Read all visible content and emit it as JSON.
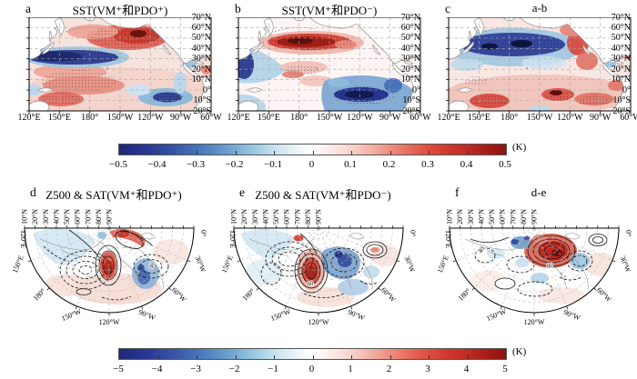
{
  "figure": {
    "background": "#ffffff"
  },
  "top_row": {
    "panels": [
      {
        "letter": "a",
        "title": "SST(VM⁺和PDO⁺)"
      },
      {
        "letter": "b",
        "title": "SST(VM⁺和PDO⁻)"
      },
      {
        "letter": "c",
        "title": "a-b"
      }
    ],
    "x_ticks": [
      "120°E",
      "150°E",
      "180°",
      "150°W",
      "120°W",
      "90°W",
      "60°W"
    ],
    "y_ticks": [
      "70°N",
      "60°N",
      "50°N",
      "40°N",
      "30°N",
      "20°N",
      "10°N",
      "0°",
      "10°S",
      "20°S"
    ]
  },
  "bottom_row": {
    "panels": [
      {
        "letter": "d",
        "title": "Z500 & SAT(VM⁺和PDO⁺)",
        "contour_labels": [
          "40"
        ]
      },
      {
        "letter": "e",
        "title": "Z500 & SAT(VM⁺和PDO⁻)",
        "contour_labels": [
          "80"
        ]
      },
      {
        "letter": "f",
        "title": "d-e",
        "contour_labels": [
          "40",
          "80"
        ]
      }
    ],
    "lat_ticks": [
      "10°N",
      "20°N",
      "30°N",
      "40°N",
      "50°N",
      "60°N",
      "70°N",
      "80°N",
      "90°N"
    ],
    "lon_ticks": [
      "120°E",
      "150°E",
      "180°",
      "150°W",
      "120°W",
      "90°W",
      "60°W",
      "30°W",
      "0°"
    ]
  },
  "colorbar_sst": {
    "unit": "(K)",
    "ticks": [
      "−0.5",
      "−0.4",
      "−0.3",
      "−0.2",
      "−0.1",
      "0",
      "0.1",
      "0.2",
      "0.3",
      "0.4",
      "0.5"
    ],
    "stops": [
      [
        0,
        "#1f2977"
      ],
      [
        7,
        "#293795"
      ],
      [
        14,
        "#3553a6"
      ],
      [
        21,
        "#4a77ba"
      ],
      [
        28,
        "#699fce"
      ],
      [
        34,
        "#94c4e0"
      ],
      [
        40,
        "#c4e1ef"
      ],
      [
        46,
        "#ecf5f8"
      ],
      [
        50,
        "#ffffff"
      ],
      [
        54,
        "#fdefec"
      ],
      [
        60,
        "#f8d3cc"
      ],
      [
        66,
        "#f2ab9e"
      ],
      [
        72,
        "#ea8070"
      ],
      [
        78,
        "#e1584a"
      ],
      [
        84,
        "#d33b30"
      ],
      [
        90,
        "#c02b23"
      ],
      [
        95,
        "#a81d17"
      ],
      [
        100,
        "#8c130f"
      ]
    ]
  },
  "colorbar_z": {
    "unit": "(K)",
    "ticks": [
      "−5",
      "−4",
      "−3",
      "−2",
      "−1",
      "0",
      "1",
      "2",
      "3",
      "4",
      "5"
    ],
    "stops": [
      [
        0,
        "#1f2977"
      ],
      [
        7,
        "#293795"
      ],
      [
        14,
        "#3553a6"
      ],
      [
        21,
        "#4a77ba"
      ],
      [
        28,
        "#699fce"
      ],
      [
        34,
        "#94c4e0"
      ],
      [
        40,
        "#c4e1ef"
      ],
      [
        46,
        "#ecf5f8"
      ],
      [
        50,
        "#ffffff"
      ],
      [
        54,
        "#fdefec"
      ],
      [
        60,
        "#f8d3cc"
      ],
      [
        66,
        "#f2ab9e"
      ],
      [
        72,
        "#ea8070"
      ],
      [
        78,
        "#e1584a"
      ],
      [
        84,
        "#d33b30"
      ],
      [
        90,
        "#c02b23"
      ],
      [
        95,
        "#a81d17"
      ],
      [
        100,
        "#8c130f"
      ]
    ]
  },
  "chart_data": [
    {
      "panel": "a",
      "type": "heatmap",
      "title": "SST(VM⁺和PDO⁺)",
      "variable": "SST anomaly",
      "units": "K",
      "lon_range": [
        "120°E",
        "60°W"
      ],
      "lat_range": [
        "20°S",
        "70°N"
      ],
      "value_range": [
        -0.5,
        0.5
      ],
      "features": [
        "negative anomaly band about −0.3 to −0.5 K across western–central North Pacific near 25–35°N (stippled)",
        "strong positive anomaly +0.3 to +0.5 K in Gulf of Alaska / northeast Pacific with dark core near 50°N 140°W (stippled)",
        "weak-to-moderate positive anomalies +0.1 to +0.3 K over western and central tropical Pacific (stippled)",
        "negative anomaly about −0.3 to −0.5 K in southeastern tropical Pacific near 5–10°S, 110–80°W",
        "stippling denotes statistical significance"
      ]
    },
    {
      "panel": "b",
      "type": "heatmap",
      "title": "SST(VM⁺和PDO⁻)",
      "variable": "SST anomaly",
      "units": "K",
      "lon_range": [
        "120°E",
        "60°W"
      ],
      "lat_range": [
        "20°S",
        "70°N"
      ],
      "value_range": [
        -0.5,
        0.5
      ],
      "features": [
        "strong positive anomaly band +0.4 to +0.5 K along ~40°N from 160°E to 140°W (stippled)",
        "negative anomalies −0.2 to −0.4 K in western subtropical Pacific near 20–30°N",
        "strong negative anomaly −0.4 to −0.5 K in tropical central–eastern Pacific, darkest near the equator 120–90°W (stippled)",
        "weak positive patches +0.1 to +0.2 K in central subtropics"
      ]
    },
    {
      "panel": "c",
      "type": "heatmap",
      "title": "a-b (difference)",
      "variable": "SST anomaly difference",
      "units": "K",
      "lon_range": [
        "120°E",
        "60°W"
      ],
      "lat_range": [
        "20°S",
        "70°N"
      ],
      "value_range": [
        -0.5,
        0.5
      ],
      "features": [
        "large negative difference −0.4 to −0.5 K over western–central North Pacific 30–50°N (stippled)",
        "positive differences +0.2 to +0.4 K along the North American west coast and through most of the tropics (stippled patches)",
        "positive difference in tropical eastern Pacific near the equator"
      ]
    },
    {
      "panel": "d",
      "type": "contour+shading",
      "title": "Z500 & SAT(VM⁺和PDO⁺)",
      "variable": "Z500 contours with SAT shading",
      "units": "K",
      "projection": "polar fan 10°N–90°N, 120°E–0°",
      "value_range": [
        -5,
        5
      ],
      "contour_labels": [
        40
      ],
      "features": [
        "positive Z500 / warm SAT (+2 to +4 K) ridge from Alaska toward the pole, closed solid contours near 120°W high latitude",
        "negative Z500 (dashed contours) over the central North Pacific",
        "cold SAT (−2 to −3 K) over eastern North America",
        "weak cool shading northwest Pacific, weak warm shading mid-latitude band"
      ]
    },
    {
      "panel": "e",
      "type": "contour+shading",
      "title": "Z500 & SAT(VM⁺和PDO⁻)",
      "variable": "Z500 contours with SAT shading",
      "units": "K",
      "projection": "polar fan 10°N–90°N, 120°E–0°",
      "value_range": [
        -5,
        5
      ],
      "contour_labels": [
        80
      ],
      "features": [
        "strong positive Z500 / warm SAT (+3 to +5 K) cell near the Gulf of Alaska with multiple closed solid contours",
        "deep dashed (negative) Z500 system over the central North Pacific",
        "cold SAT (−3 to −4 K) over Canada and the central/eastern North America",
        "secondary positive solid-contour cell near the North Atlantic side"
      ]
    },
    {
      "panel": "f",
      "type": "contour+shading",
      "title": "d-e (difference)",
      "variable": "Z500 contours with SAT shading",
      "units": "K",
      "projection": "polar fan 10°N–90°N, 120°E–0°",
      "value_range": [
        -5,
        5
      ],
      "contour_labels": [
        40,
        80
      ],
      "features": [
        "large positive Z500 / warm SAT (+3 to +5 K) anomaly centered near the pole toward 120–90°W with closed solid contours",
        "scattered cold patches (−1 to −2 K) flanking the polar warm cell",
        "dashed negative contours over mid-latitude North Pacific and North America"
      ]
    },
    {
      "panel": "colorbar-top",
      "type": "colorbar",
      "orientation": "horizontal",
      "units": "K",
      "range": [
        -0.5,
        0.5
      ],
      "ticks": [
        -0.5,
        -0.4,
        -0.3,
        -0.2,
        -0.1,
        0,
        0.1,
        0.2,
        0.3,
        0.4,
        0.5
      ],
      "palette": "blue-white-red"
    },
    {
      "panel": "colorbar-bottom",
      "type": "colorbar",
      "orientation": "horizontal",
      "units": "K",
      "range": [
        -5,
        5
      ],
      "ticks": [
        -5,
        -4,
        -3,
        -2,
        -1,
        0,
        1,
        2,
        3,
        4,
        5
      ],
      "palette": "blue-white-red"
    }
  ]
}
